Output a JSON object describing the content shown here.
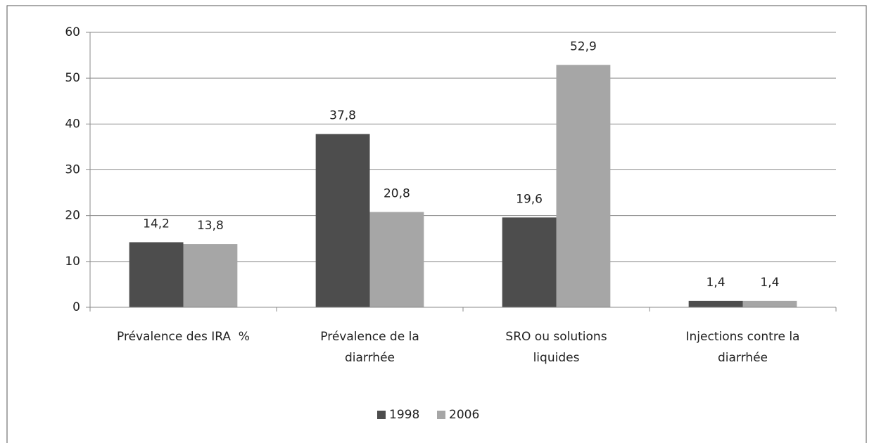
{
  "chart_data": {
    "type": "bar",
    "categories": [
      "Prévalence des IRA  %",
      "Prévalence de la\ndiarrhée",
      "SRO ou solutions\nliquides",
      "Injections contre la\ndiarrhée"
    ],
    "series": [
      {
        "name": "1998",
        "color": "#4d4d4d",
        "values": [
          14.2,
          37.8,
          19.6,
          1.4
        ],
        "value_labels": [
          "14,2",
          "37,8",
          "19,6",
          "1,4"
        ]
      },
      {
        "name": "2006",
        "color": "#a6a6a6",
        "values": [
          13.8,
          20.8,
          52.9,
          1.4
        ],
        "value_labels": [
          "13,8",
          "20,8",
          "52,9",
          "1,4"
        ]
      }
    ],
    "ylim": [
      0,
      60
    ],
    "yticks": [
      0,
      10,
      20,
      30,
      40,
      50,
      60
    ],
    "grid": true,
    "legend": "bottom"
  }
}
